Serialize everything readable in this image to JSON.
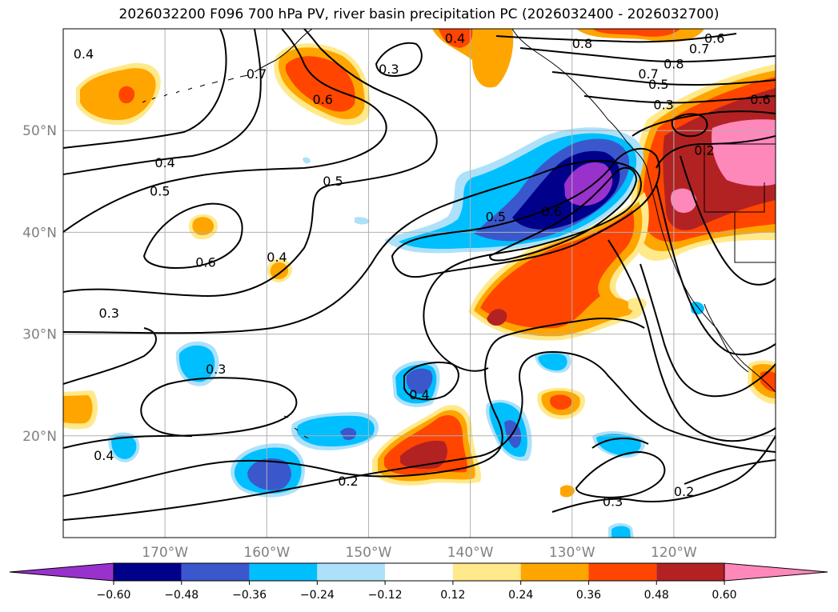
{
  "title": "2026032200 F096 700 hPa PV, river basin precipitation PC (2026032400 - 2026032700)",
  "map": {
    "lon_range": [
      -180,
      -110
    ],
    "lat_range": [
      10,
      60
    ],
    "lat_ticks": [
      {
        "value": 20,
        "label": "20°N"
      },
      {
        "value": 30,
        "label": "30°N"
      },
      {
        "value": 40,
        "label": "40°N"
      },
      {
        "value": 50,
        "label": "50°N"
      }
    ],
    "lon_ticks": [
      {
        "value": -170,
        "label": "170°W"
      },
      {
        "value": -160,
        "label": "160°W"
      },
      {
        "value": -150,
        "label": "150°W"
      },
      {
        "value": -140,
        "label": "140°W"
      },
      {
        "value": -130,
        "label": "130°W"
      },
      {
        "value": -120,
        "label": "120°W"
      }
    ],
    "gridlines": true,
    "grid_color": "#b0b0b0",
    "coast_color": "#000000",
    "contour_color": "#000000"
  },
  "colorbar": {
    "levels": [
      "−0.60",
      "−0.48",
      "−0.36",
      "−0.24",
      "−0.12",
      "0.12",
      "0.24",
      "0.36",
      "0.48",
      "0.60"
    ],
    "colors": [
      "#9932CC",
      "#00008B",
      "#3A58CC",
      "#00BFFF",
      "#ADE1FA",
      "#FFFFFF",
      "#FFE98A",
      "#FFA500",
      "#FF4500",
      "#B22222",
      "#FF88BB"
    ],
    "extend": "both"
  },
  "pv_contours": [
    {
      "label": "0.2",
      "lon": -152,
      "lat": 15.5
    },
    {
      "label": "0.2",
      "lon": -119,
      "lat": 14.5
    },
    {
      "label": "0.3",
      "lon": -175.5,
      "lat": 32
    },
    {
      "label": "0.3",
      "lon": -165,
      "lat": 26.5
    },
    {
      "label": "0.3",
      "lon": -126,
      "lat": 13.5
    },
    {
      "label": "0.3",
      "lon": -148,
      "lat": 56
    },
    {
      "label": "0.3",
      "lon": -121,
      "lat": 52.5
    },
    {
      "label": "0.4",
      "lon": -178,
      "lat": 57.5
    },
    {
      "label": "0.4",
      "lon": -170,
      "lat": 46.8
    },
    {
      "label": "0.4",
      "lon": -159,
      "lat": 37.5
    },
    {
      "label": "0.4",
      "lon": -145,
      "lat": 24
    },
    {
      "label": "0.4",
      "lon": -176,
      "lat": 18
    },
    {
      "label": "0.4",
      "lon": -141.5,
      "lat": 59
    },
    {
      "label": "0.5",
      "lon": -170.5,
      "lat": 44
    },
    {
      "label": "0.5",
      "lon": -153.5,
      "lat": 45
    },
    {
      "label": "0.5",
      "lon": -137.5,
      "lat": 41.5
    },
    {
      "label": "0.5",
      "lon": -121.5,
      "lat": 54.5
    },
    {
      "label": "0.6",
      "lon": -166,
      "lat": 37
    },
    {
      "label": "0.6",
      "lon": -132,
      "lat": 42
    },
    {
      "label": "0.6",
      "lon": -154.5,
      "lat": 53
    },
    {
      "label": "0.6",
      "lon": -116,
      "lat": 59
    },
    {
      "label": "0.6",
      "lon": -111.5,
      "lat": 53
    },
    {
      "label": "0.7",
      "lon": -161,
      "lat": 55.5
    },
    {
      "label": "0.7",
      "lon": -117.5,
      "lat": 58
    },
    {
      "label": "0.7",
      "lon": -122.5,
      "lat": 55.5
    },
    {
      "label": "0.8",
      "lon": -129,
      "lat": 58.5
    },
    {
      "label": "0.8",
      "lon": -120,
      "lat": 56.5
    },
    {
      "label": "0.2",
      "lon": -117,
      "lat": 48
    }
  ]
}
